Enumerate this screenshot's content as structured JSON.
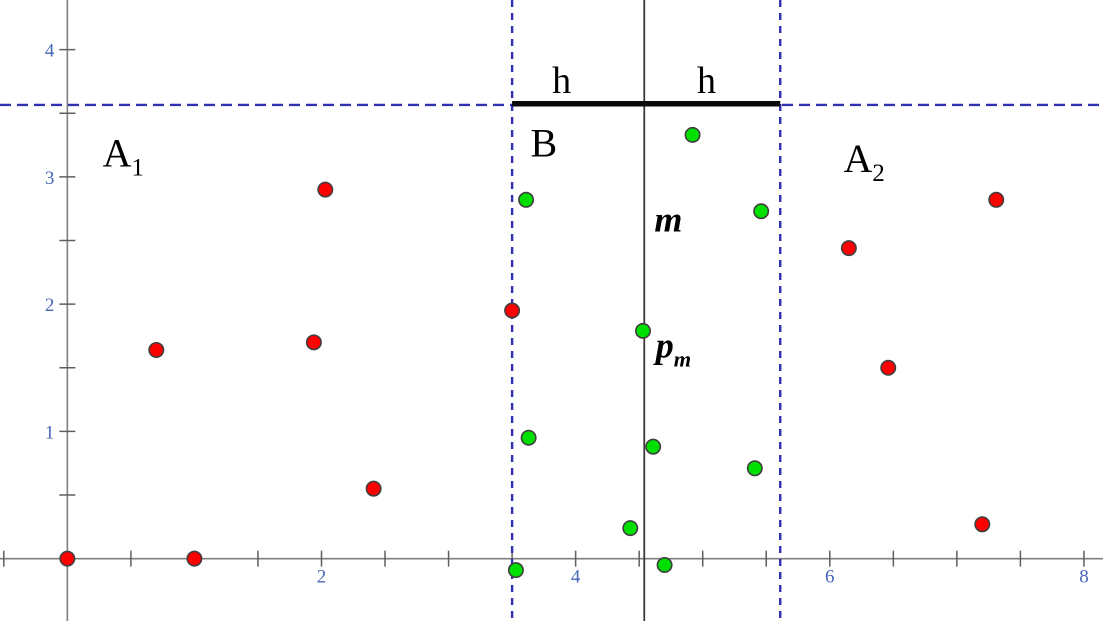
{
  "figure": {
    "caption": "Scatter diagram of a point set divided by a vertical median line m into left region A1 and right region A2, with a middle strip B of half-width h on each side of m and a marked point p_m on the median line."
  },
  "chart_data": {
    "type": "scatter",
    "title": "",
    "xlabel": "",
    "ylabel": "",
    "xlim": [
      -0.53,
      8.15
    ],
    "ylim": [
      -0.49,
      4.39
    ],
    "grid": false,
    "legend": "none",
    "x_ticks": {
      "from": 0.5,
      "to": 8,
      "step": 0.5,
      "labeled": [
        2,
        4,
        6,
        8
      ]
    },
    "y_ticks": {
      "from": 0.5,
      "to": 4,
      "step": 0.5,
      "labeled": [
        1,
        2,
        3,
        4
      ]
    },
    "series": [
      {
        "name": "outside-strip-points",
        "label": "points outside strip (red)",
        "color": "#ff0000",
        "points": [
          [
            0,
            0
          ],
          [
            1,
            0
          ],
          [
            0.7,
            1.64
          ],
          [
            1.94,
            1.7
          ],
          [
            2.03,
            2.9
          ],
          [
            2.41,
            0.55
          ],
          [
            3.5,
            1.95
          ],
          [
            6.15,
            2.44
          ],
          [
            6.46,
            1.5
          ],
          [
            7.2,
            0.27
          ],
          [
            7.31,
            2.82
          ]
        ]
      },
      {
        "name": "strip-points",
        "label": "points inside strip B (green)",
        "color": "#00e000",
        "points": [
          [
            3.53,
            -0.09
          ],
          [
            3.61,
            2.82
          ],
          [
            3.63,
            0.95
          ],
          [
            4.43,
            0.24
          ],
          [
            4.53,
            1.79
          ],
          [
            4.61,
            0.88
          ],
          [
            4.7,
            -0.05
          ],
          [
            4.92,
            3.33
          ],
          [
            5.41,
            0.71
          ],
          [
            5.46,
            2.73
          ]
        ]
      }
    ],
    "reference_lines": {
      "median": {
        "x": 4.54,
        "style": "solid",
        "color": "#3a3a3a"
      },
      "strip_left": {
        "x": 3.5,
        "style": "dashed",
        "color": "#3030b0"
      },
      "strip_right": {
        "x": 5.61,
        "style": "dashed",
        "color": "#3030b0"
      },
      "horizontal": {
        "y": 3.565,
        "style": "dashed",
        "color": "#3030b0"
      }
    },
    "h_bar": {
      "x1": 3.5,
      "x2": 5.61,
      "y": 3.575,
      "color": "#0a0a0a"
    },
    "annotations": [
      {
        "name": "label-a1",
        "text": "A",
        "sub": "1",
        "style": "region",
        "x": 0.44,
        "y": 3.08
      },
      {
        "name": "label-b",
        "text": "B",
        "style": "region",
        "x": 3.75,
        "y": 3.16
      },
      {
        "name": "label-a2",
        "text": "A",
        "sub": "2",
        "style": "region",
        "x": 6.27,
        "y": 3.04
      },
      {
        "name": "label-h-left",
        "text": "h",
        "style": "measure",
        "x": 3.89,
        "y": 3.66
      },
      {
        "name": "label-h-right",
        "text": "h",
        "style": "measure",
        "x": 5.03,
        "y": 3.66
      },
      {
        "name": "label-m",
        "text": "m",
        "style": "math",
        "x": 4.73,
        "y": 2.57
      },
      {
        "name": "label-pm",
        "text": "p",
        "sub": "m",
        "style": "math",
        "x": 4.77,
        "y": 1.58
      }
    ],
    "colors": {
      "background": "#ffffff",
      "axis": "#7f7f7f",
      "tick_labels": "#4666b8",
      "dashed_lines": "#3030b0",
      "point_outline": "#3f3f3f"
    }
  }
}
